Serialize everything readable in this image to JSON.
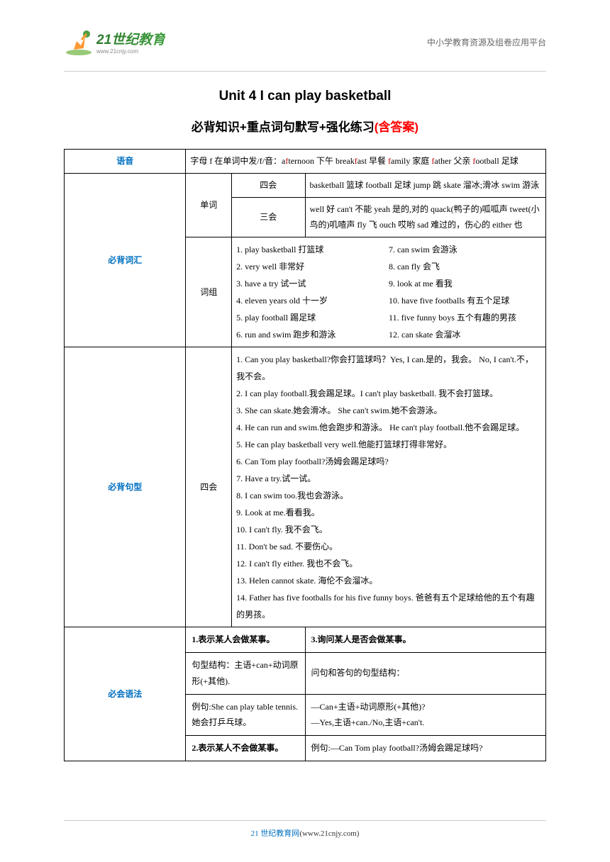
{
  "header": {
    "logo_chinese": "21世纪教育",
    "logo_url": "www.21cnjy.com",
    "right_text": "中小学教育资源及组卷应用平台"
  },
  "titles": {
    "main": "Unit 4 I can play basketball",
    "sub_prefix": "必背知识+重点词句默写+强化练习",
    "sub_red": "(含答案)"
  },
  "phonetics": {
    "label": "语音",
    "content_prefix": "字母 f 在单词中发/f/音：a",
    "w1a": "f",
    "w1b": "ternoon 下午   break",
    "w2a": "f",
    "w2b": "ast 早餐  ",
    "w3a": "f",
    "w3b": "amily 家庭   ",
    "w4a": "f",
    "w4b": "ather 父亲   ",
    "w5a": "f",
    "w5b": "ootball 足球"
  },
  "vocab": {
    "section_label": "必背词汇",
    "word_label": "单词",
    "four_label": "四会",
    "three_label": "三会",
    "four_content": "basketball  篮球   football  足球   jump  跳   skate  溜冰;滑冰   swim  游泳",
    "three_content": "well 好    can't 不能     yeah 是的,对的    quack(鸭子的)呱呱声     tweet(小鸟的)叽喳声   fly 飞     ouch 哎哟     sad 难过的，伤心的    either  也",
    "phrase_label": "词组",
    "phrases": [
      "1. play basketball 打篮球",
      "7. can swim 会游泳",
      "2. very well 非常好",
      "8. can fly  会飞",
      "3. have a try  试一试",
      "9. look at me 看我",
      "4. eleven years old  十一岁",
      "10.   have five footballs 有五个足球",
      "5. play football 踢足球",
      "11.   five funny boys  五个有趣的男孩",
      "6. run and swim  跑步和游泳",
      "12.   can skate 会溜冰"
    ]
  },
  "sentences": {
    "section_label": "必背句型",
    "four_label": "四会",
    "items": [
      "1. Can you play basketball?你会打篮球吗？Yes, I can.是的，我会。  No, I can't.不，我不会。",
      "2. I can play football.我会踢足球。I can't play basketball.           我不会打篮球。",
      "3. She can skate.她会滑冰。     She can't swim.她不会游泳。",
      "4. He can run and swim.他会跑步和游泳。  He can't play football.他不会踢足球。",
      "5. He can play basketball very well.他能打篮球打得非常好。",
      "6. Can Tom play football?汤姆会踢足球吗?",
      "7. Have a try.试一试。",
      "8. I can swim too.我也会游泳。",
      "9. Look at me.看看我。",
      "10.   I can't fly.  我不会飞。",
      "11.   Don't be sad.     不要伤心。",
      "12.   I can't fly either.    我也不会飞。",
      "13.   Helen cannot skate.   海伦不会溜冰。",
      "14.   Father has five footballs for his five funny boys.  爸爸有五个足球给他的五个有趣的男孩。"
    ]
  },
  "grammar": {
    "section_label": "必会语法",
    "left_title": "1.表示某人会做某事。",
    "right_title": "3.询问某人是否会做某事。",
    "left_row1": "句型结构：主语+can+动词原形(+其他).",
    "right_row1": "问句和答句的句型结构：",
    "left_row2": "例句:She can play table tennis.她会打乒乓球。",
    "right_row2": "—Can+主语+动词原形(+其他)?",
    "right_row3": "—Yes,主语+can./No,主语+can't.",
    "left_row4": "2.表示某人不会做某事。",
    "right_row4": "例句:—Can Tom play football?汤姆会踢足球吗?"
  },
  "footer": {
    "text": "21 世纪教育网",
    "url": "(www.21cnjy.com)"
  },
  "colors": {
    "blue": "#0070c0",
    "red": "#ff0000",
    "red_inline": "#c00000",
    "border": "#000000",
    "divider": "#cccccc"
  }
}
